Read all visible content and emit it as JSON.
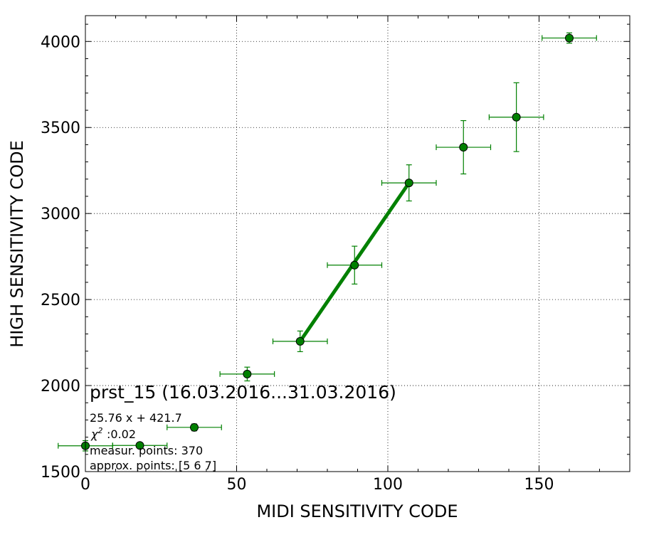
{
  "chart_data": {
    "type": "scatter",
    "xlabel": "MIDI SENSITIVITY CODE",
    "ylabel": "HIGH SENSITIVITY CODE",
    "xlim": [
      0,
      180
    ],
    "ylim": [
      1500,
      4150
    ],
    "x_ticks": [
      0,
      50,
      100,
      150
    ],
    "y_ticks": [
      1500,
      2000,
      2500,
      3000,
      3500,
      4000
    ],
    "grid": true,
    "marker_color": "#008000",
    "fit_line_color": "#008000",
    "points": [
      {
        "x": 0,
        "y": 1650,
        "xerr": 9,
        "yerr": 30
      },
      {
        "x": 18,
        "y": 1652,
        "xerr": 9,
        "yerr": 15
      },
      {
        "x": 36,
        "y": 1757,
        "xerr": 9,
        "yerr": 20
      },
      {
        "x": 53.5,
        "y": 2067,
        "xerr": 9,
        "yerr": 40
      },
      {
        "x": 71,
        "y": 2257,
        "xerr": 9,
        "yerr": 60
      },
      {
        "x": 89,
        "y": 2700,
        "xerr": 9,
        "yerr": 110
      },
      {
        "x": 107,
        "y": 3178,
        "xerr": 9,
        "yerr": 105
      },
      {
        "x": 125,
        "y": 3385,
        "xerr": 9,
        "yerr": 155
      },
      {
        "x": 142.5,
        "y": 3560,
        "xerr": 9,
        "yerr": 200
      },
      {
        "x": 160,
        "y": 4020,
        "xerr": 9,
        "yerr": 30
      }
    ],
    "fit_line": {
      "x": [
        71,
        107
      ],
      "y": [
        2257,
        3178
      ]
    },
    "annotations": {
      "title": "prst_15 (16.03.2016...31.03.2016)",
      "equation": "25.76 x + 421.7",
      "chi2": ":0.02",
      "measur_points": "measur. points: 370",
      "approx_points": "approx. points: [5 6 7]"
    }
  }
}
